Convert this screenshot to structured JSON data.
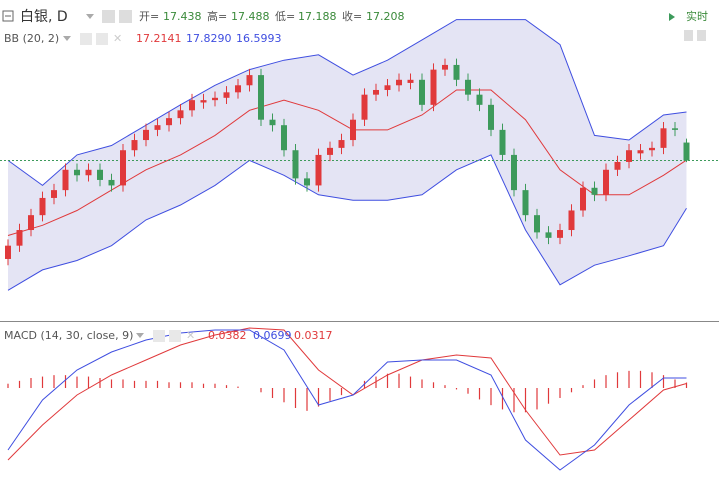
{
  "header": {
    "symbol": "白银, D",
    "open_label": "开=",
    "high_label": "高=",
    "low_label": "低=",
    "close_label": "收=",
    "realtime": "实时"
  },
  "chart_data": [
    {
      "type": "candlestick",
      "indicator": "BB (20, 2)",
      "ylim": [
        15.17,
        19.26
      ],
      "up_color": "#e0393b",
      "down_color": "#3d9a5b",
      "band_color": "#3f4ee0",
      "band_fill": "#e4e4f4",
      "middle_color": "#e0393b",
      "last_price_color": "#3d9a5b",
      "open": [
        15.95,
        16.12,
        16.32,
        16.51,
        16.73,
        16.83,
        17.09,
        17.02,
        17.09,
        16.96,
        16.89,
        17.34,
        17.47,
        17.6,
        17.66,
        17.75,
        17.85,
        17.95,
        17.98,
        18.01,
        18.08,
        18.17,
        18.3,
        17.73,
        17.66,
        17.34,
        16.98,
        16.89,
        17.28,
        17.37,
        17.47,
        17.73,
        18.05,
        18.11,
        18.17,
        18.2,
        18.24,
        17.92,
        18.37,
        18.43,
        18.24,
        18.05,
        17.92,
        17.6,
        17.28,
        16.83,
        16.51,
        16.29,
        16.22,
        16.32,
        16.57,
        16.86,
        16.77,
        17.09,
        17.19,
        17.3,
        17.34,
        17.37,
        17.62,
        17.438
      ],
      "high": [
        16.2,
        16.4,
        16.59,
        16.81,
        16.91,
        17.17,
        17.17,
        17.17,
        17.17,
        17.04,
        17.42,
        17.55,
        17.68,
        17.74,
        17.83,
        17.93,
        18.06,
        18.06,
        18.09,
        18.16,
        18.25,
        18.38,
        18.38,
        17.81,
        17.74,
        17.42,
        17.06,
        17.36,
        17.45,
        17.55,
        17.81,
        18.13,
        18.19,
        18.25,
        18.32,
        18.32,
        18.32,
        18.45,
        18.51,
        18.51,
        18.32,
        18.13,
        18.0,
        17.68,
        17.36,
        16.91,
        16.59,
        16.37,
        16.4,
        16.65,
        16.94,
        16.94,
        17.17,
        17.27,
        17.42,
        17.42,
        17.45,
        17.7,
        17.7,
        17.488
      ],
      "low": [
        15.87,
        16.04,
        16.24,
        16.43,
        16.65,
        16.75,
        16.94,
        16.94,
        16.88,
        16.81,
        16.81,
        17.26,
        17.39,
        17.52,
        17.58,
        17.67,
        17.77,
        17.87,
        17.9,
        17.93,
        18.0,
        18.09,
        17.65,
        17.58,
        17.26,
        16.9,
        16.81,
        16.81,
        17.2,
        17.29,
        17.39,
        17.65,
        17.97,
        18.03,
        18.09,
        18.12,
        17.84,
        17.84,
        18.29,
        18.16,
        17.97,
        17.84,
        17.52,
        17.2,
        16.75,
        16.43,
        16.21,
        16.14,
        16.14,
        16.24,
        16.49,
        16.69,
        16.69,
        17.01,
        17.11,
        17.22,
        17.26,
        17.29,
        17.52,
        17.188
      ],
      "close": [
        16.12,
        16.32,
        16.51,
        16.73,
        16.83,
        17.09,
        17.02,
        17.09,
        16.96,
        16.89,
        17.34,
        17.47,
        17.6,
        17.66,
        17.75,
        17.85,
        17.98,
        17.98,
        18.01,
        18.08,
        18.17,
        18.3,
        17.73,
        17.66,
        17.34,
        16.98,
        16.89,
        17.28,
        17.37,
        17.47,
        17.73,
        18.05,
        18.11,
        18.17,
        18.24,
        18.24,
        17.92,
        18.37,
        18.43,
        18.24,
        18.05,
        17.92,
        17.6,
        17.28,
        16.83,
        16.51,
        16.29,
        16.22,
        16.32,
        16.57,
        16.86,
        16.77,
        17.09,
        17.19,
        17.34,
        17.34,
        17.37,
        17.62,
        17.6,
        17.208
      ],
      "bb_x": [
        0,
        3,
        6,
        9,
        12,
        15,
        18,
        21,
        24,
        27,
        30,
        33,
        36,
        39,
        42,
        45,
        48,
        51,
        54,
        57,
        59
      ],
      "bb_middle": [
        16.25,
        16.38,
        16.57,
        16.83,
        17.09,
        17.28,
        17.53,
        17.85,
        17.98,
        17.85,
        17.6,
        17.6,
        17.79,
        18.11,
        18.11,
        17.73,
        17.09,
        16.77,
        16.77,
        17.02,
        17.2141
      ],
      "bb_upper": [
        17.21,
        16.89,
        17.28,
        17.4,
        17.66,
        17.92,
        18.17,
        18.37,
        18.49,
        18.56,
        18.3,
        18.49,
        18.75,
        19.01,
        19.01,
        19.01,
        18.69,
        17.53,
        17.47,
        17.79,
        17.829
      ],
      "bb_lower": [
        15.55,
        15.81,
        15.93,
        16.12,
        16.45,
        16.64,
        16.89,
        17.21,
        17.02,
        16.77,
        16.7,
        16.7,
        16.77,
        17.09,
        17.28,
        16.32,
        15.62,
        15.87,
        15.99,
        16.12,
        16.5993
      ],
      "legend_value_labels": [
        "17.2141",
        "17.8290",
        "16.5993"
      ]
    },
    {
      "type": "macd",
      "title": "MACD (14, 30, close, 9)",
      "ylim": [
        -0.665,
        0.455
      ],
      "histogram_color": "#e0393b",
      "macd_color": "#3f4ee0",
      "signal_color": "#e0393b",
      "histogram": [
        0.03,
        0.05,
        0.07,
        0.08,
        0.09,
        0.09,
        0.08,
        0.08,
        0.07,
        0.06,
        0.06,
        0.05,
        0.05,
        0.05,
        0.04,
        0.04,
        0.04,
        0.03,
        0.03,
        0.02,
        0.01,
        0.0,
        -0.03,
        -0.07,
        -0.1,
        -0.14,
        -0.16,
        -0.13,
        -0.09,
        -0.05,
        0.0,
        0.05,
        0.08,
        0.1,
        0.1,
        0.08,
        0.06,
        0.04,
        0.02,
        -0.01,
        -0.04,
        -0.08,
        -0.12,
        -0.15,
        -0.17,
        -0.17,
        -0.15,
        -0.11,
        -0.07,
        -0.03,
        0.02,
        0.06,
        0.09,
        0.11,
        0.12,
        0.12,
        0.11,
        0.09,
        0.06,
        0.0382
      ],
      "x": [
        0,
        3,
        6,
        9,
        12,
        15,
        18,
        21,
        24,
        27,
        30,
        33,
        36,
        39,
        42,
        45,
        48,
        51,
        54,
        57,
        59
      ],
      "macd": [
        -0.434,
        -0.084,
        0.126,
        0.252,
        0.336,
        0.385,
        0.406,
        0.406,
        0.266,
        -0.119,
        -0.049,
        0.182,
        0.196,
        0.196,
        0.091,
        -0.364,
        -0.574,
        -0.399,
        -0.119,
        0.07,
        0.0699
      ],
      "signal": [
        -0.504,
        -0.259,
        -0.049,
        0.091,
        0.196,
        0.301,
        0.371,
        0.42,
        0.406,
        0.126,
        -0.049,
        0.091,
        0.196,
        0.231,
        0.21,
        -0.154,
        -0.469,
        -0.434,
        -0.224,
        -0.014,
        0.0317
      ]
    }
  ]
}
